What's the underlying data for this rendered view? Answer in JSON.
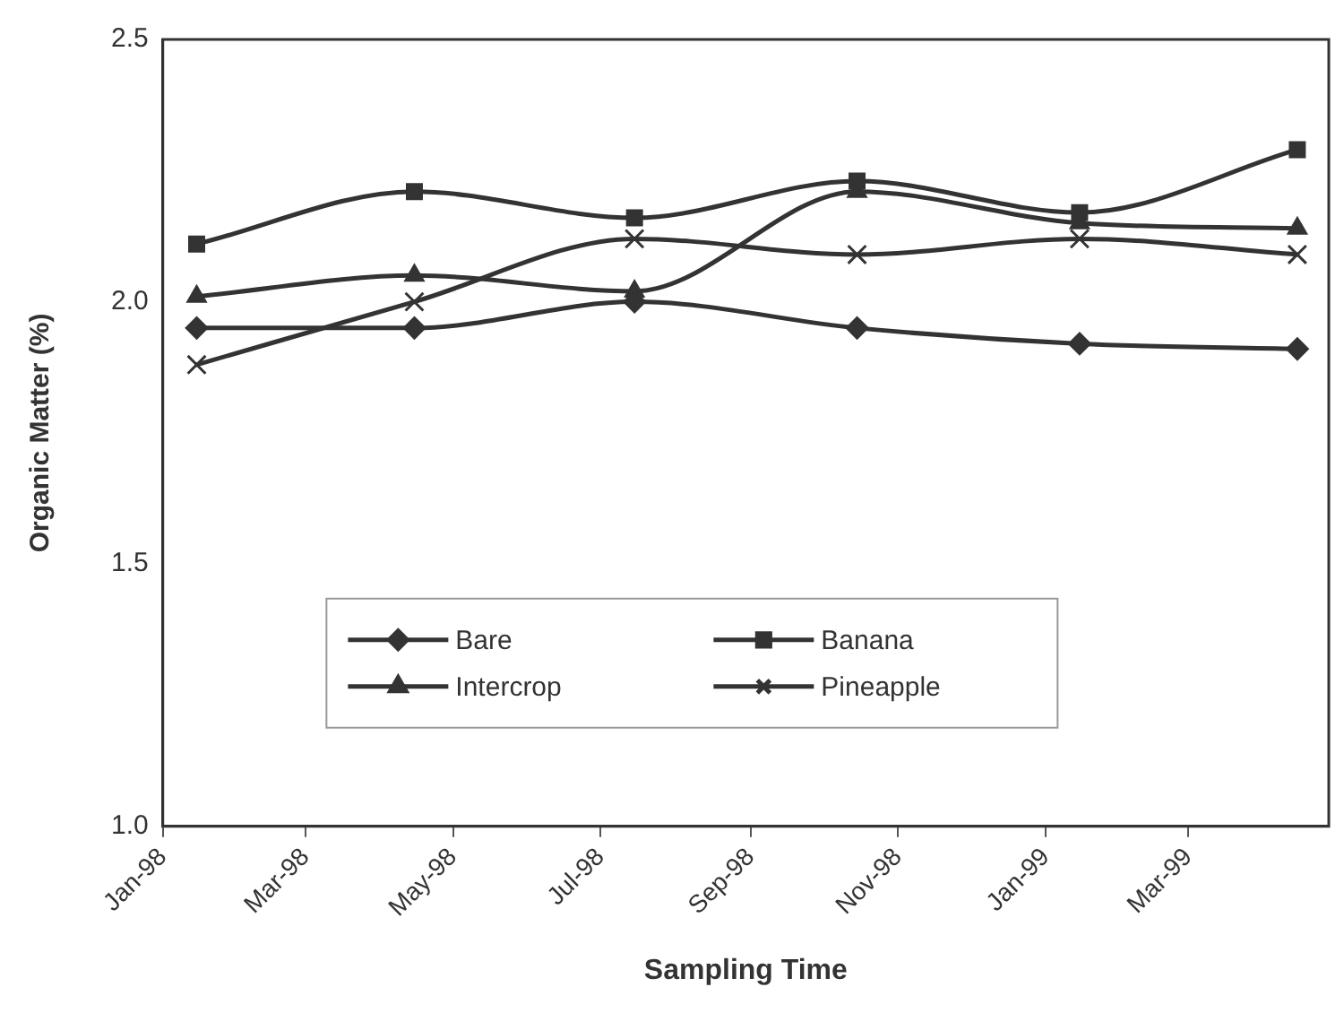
{
  "chart_data": {
    "type": "line",
    "xlabel": "Sampling Time",
    "ylabel": "Organic Matter (%)",
    "x": [
      "1998-01-15",
      "1998-04-15",
      "1998-07-15",
      "1998-10-15",
      "1999-01-15",
      "1999-04-15"
    ],
    "series": [
      {
        "name": "Bare",
        "color": "#333333",
        "marker": "diamond",
        "values": [
          1.95,
          1.95,
          2.0,
          1.95,
          1.92,
          1.91
        ]
      },
      {
        "name": "Banana",
        "color": "#333333",
        "marker": "square",
        "values": [
          2.11,
          2.21,
          2.16,
          2.23,
          2.17,
          2.29
        ]
      },
      {
        "name": "Intercrop",
        "color": "#333333",
        "marker": "triangle",
        "values": [
          2.01,
          2.05,
          2.02,
          2.21,
          2.15,
          2.14
        ]
      },
      {
        "name": "Pineapple",
        "color": "#333333",
        "marker": "cross",
        "values": [
          1.88,
          2.0,
          2.12,
          2.09,
          2.12,
          2.09
        ]
      }
    ],
    "xlim": [
      "1998-01-01",
      "1999-04-28"
    ],
    "xticks": [
      {
        "value": "1998-01-01",
        "label": "Jan-98"
      },
      {
        "value": "1998-03-01",
        "label": "Mar-98"
      },
      {
        "value": "1998-05-01",
        "label": "May-98"
      },
      {
        "value": "1998-07-01",
        "label": "Jul-98"
      },
      {
        "value": "1998-09-01",
        "label": "Sep-98"
      },
      {
        "value": "1998-11-01",
        "label": "Nov-98"
      },
      {
        "value": "1999-01-01",
        "label": "Jan-99"
      },
      {
        "value": "1999-03-01",
        "label": "Mar-99"
      }
    ],
    "ylim": [
      1.0,
      2.5
    ],
    "yticks": [
      {
        "value": 1,
        "label": "1.0"
      },
      1.5,
      {
        "value": 2,
        "label": "2.0"
      },
      2.5
    ],
    "grid": false,
    "legend": "bottom",
    "line_style": "solid"
  }
}
